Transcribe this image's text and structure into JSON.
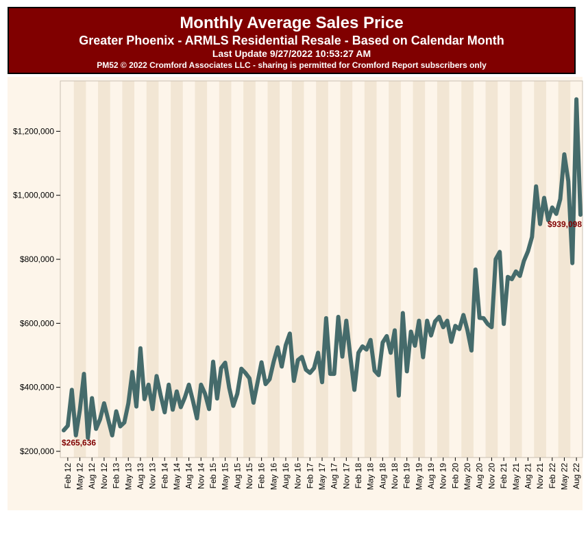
{
  "header": {
    "title": "Monthly Average Sales Price",
    "subtitle": "Greater Phoenix - ARMLS Residential Resale - Based on Calendar Month",
    "update": "Last Update 9/27/2022 10:53:27 AM",
    "copyright": "PM52 © 2022 Cromford Associates LLC - sharing is permitted for Cromford Report subscribers only"
  },
  "chart_data": {
    "type": "line",
    "title": "Monthly Average Sales Price",
    "xlabel": "",
    "ylabel": "",
    "ylim": [
      180000,
      1320000
    ],
    "yticks": [
      200000,
      400000,
      600000,
      800000,
      1000000,
      1200000
    ],
    "ytick_labels": [
      "$200,000",
      "$400,000",
      "$600,000",
      "$800,000",
      "$1,000,000",
      "$1,200,000"
    ],
    "xtick_labels": [
      "Feb 12",
      "May 12",
      "Aug 12",
      "Nov 12",
      "Feb 13",
      "May 13",
      "Aug 13",
      "Nov 13",
      "Feb 14",
      "May 14",
      "Aug 14",
      "Nov 14",
      "Feb 15",
      "May 15",
      "Aug 15",
      "Nov 15",
      "Feb 16",
      "May 16",
      "Aug 16",
      "Nov 16",
      "Feb 17",
      "May 17",
      "Aug 17",
      "Nov 17",
      "Feb 18",
      "May 18",
      "Aug 18",
      "Nov 18",
      "Feb 19",
      "May 19",
      "Aug 19",
      "Nov 19",
      "Feb 20",
      "May 20",
      "Aug 20",
      "Nov 20",
      "Feb 21",
      "May 21",
      "Aug 21",
      "Nov 21",
      "Feb 22",
      "May 22",
      "Aug 22"
    ],
    "x_start": "2012-01",
    "x_end": "2022-09",
    "annotations": [
      {
        "text": "$265,636",
        "x": "2012-01",
        "y": 265636
      },
      {
        "text": "$939,098",
        "x": "2022-09",
        "y": 939098
      }
    ],
    "colors": {
      "line": "#456b6b",
      "label": "#800000",
      "band": "#f2e6d4",
      "bg": "#fdf5ea"
    },
    "grid": false,
    "series": [
      {
        "name": "",
        "x": [
          "2012-01",
          "2012-02",
          "2012-03",
          "2012-04",
          "2012-05",
          "2012-06",
          "2012-07",
          "2012-08",
          "2012-09",
          "2012-10",
          "2012-11",
          "2012-12",
          "2013-01",
          "2013-02",
          "2013-03",
          "2013-04",
          "2013-05",
          "2013-06",
          "2013-07",
          "2013-08",
          "2013-09",
          "2013-10",
          "2013-11",
          "2013-12",
          "2014-01",
          "2014-02",
          "2014-03",
          "2014-04",
          "2014-05",
          "2014-06",
          "2014-07",
          "2014-08",
          "2014-09",
          "2014-10",
          "2014-11",
          "2014-12",
          "2015-01",
          "2015-02",
          "2015-03",
          "2015-04",
          "2015-05",
          "2015-06",
          "2015-07",
          "2015-08",
          "2015-09",
          "2015-10",
          "2015-11",
          "2015-12",
          "2016-01",
          "2016-02",
          "2016-03",
          "2016-04",
          "2016-05",
          "2016-06",
          "2016-07",
          "2016-08",
          "2016-09",
          "2016-10",
          "2016-11",
          "2016-12",
          "2017-01",
          "2017-02",
          "2017-03",
          "2017-04",
          "2017-05",
          "2017-06",
          "2017-07",
          "2017-08",
          "2017-09",
          "2017-10",
          "2017-11",
          "2017-12",
          "2018-01",
          "2018-02",
          "2018-03",
          "2018-04",
          "2018-05",
          "2018-06",
          "2018-07",
          "2018-08",
          "2018-09",
          "2018-10",
          "2018-11",
          "2018-12",
          "2019-01",
          "2019-02",
          "2019-03",
          "2019-04",
          "2019-05",
          "2019-06",
          "2019-07",
          "2019-08",
          "2019-09",
          "2019-10",
          "2019-11",
          "2019-12",
          "2020-01",
          "2020-02",
          "2020-03",
          "2020-04",
          "2020-05",
          "2020-06",
          "2020-07",
          "2020-08",
          "2020-09",
          "2020-10",
          "2020-11",
          "2020-12",
          "2021-01",
          "2021-02",
          "2021-03",
          "2021-04",
          "2021-05",
          "2021-06",
          "2021-07",
          "2021-08",
          "2021-09",
          "2021-10",
          "2021-11",
          "2021-12",
          "2022-01",
          "2022-02",
          "2022-03",
          "2022-04",
          "2022-05",
          "2022-06",
          "2022-07",
          "2022-08",
          "2022-09"
        ],
        "values": [
          265636,
          280000,
          392000,
          250000,
          330000,
          442000,
          242000,
          366000,
          270000,
          300000,
          350000,
          300000,
          250000,
          325000,
          278000,
          290000,
          350000,
          448000,
          340000,
          522000,
          363000,
          408000,
          332000,
          435000,
          375000,
          322000,
          408000,
          330000,
          387000,
          338000,
          368000,
          408000,
          358000,
          303000,
          408000,
          380000,
          332000,
          480000,
          365000,
          460000,
          477000,
          398000,
          342000,
          380000,
          458000,
          445000,
          428000,
          352000,
          415000,
          478000,
          410000,
          425000,
          480000,
          525000,
          465000,
          532000,
          568000,
          420000,
          485000,
          495000,
          455000,
          445000,
          460000,
          508000,
          416000,
          616000,
          442000,
          442000,
          620000,
          496000,
          608000,
          496000,
          392000,
          508000,
          528000,
          518000,
          548000,
          452000,
          438000,
          540000,
          560000,
          508000,
          578000,
          374000,
          632000,
          450000,
          574000,
          530000,
          608000,
          494000,
          608000,
          562000,
          606000,
          620000,
          588000,
          608000,
          542000,
          592000,
          582000,
          626000,
          578000,
          515000,
          768000,
          617000,
          616000,
          598000,
          588000,
          800000,
          823000,
          598000,
          745000,
          738000,
          762000,
          748000,
          795000,
          825000,
          870000,
          1028000,
          910000,
          992000,
          922000,
          962000,
          942000,
          988000,
          1128000,
          1044000,
          788000,
          1300000,
          939098
        ]
      }
    ]
  }
}
